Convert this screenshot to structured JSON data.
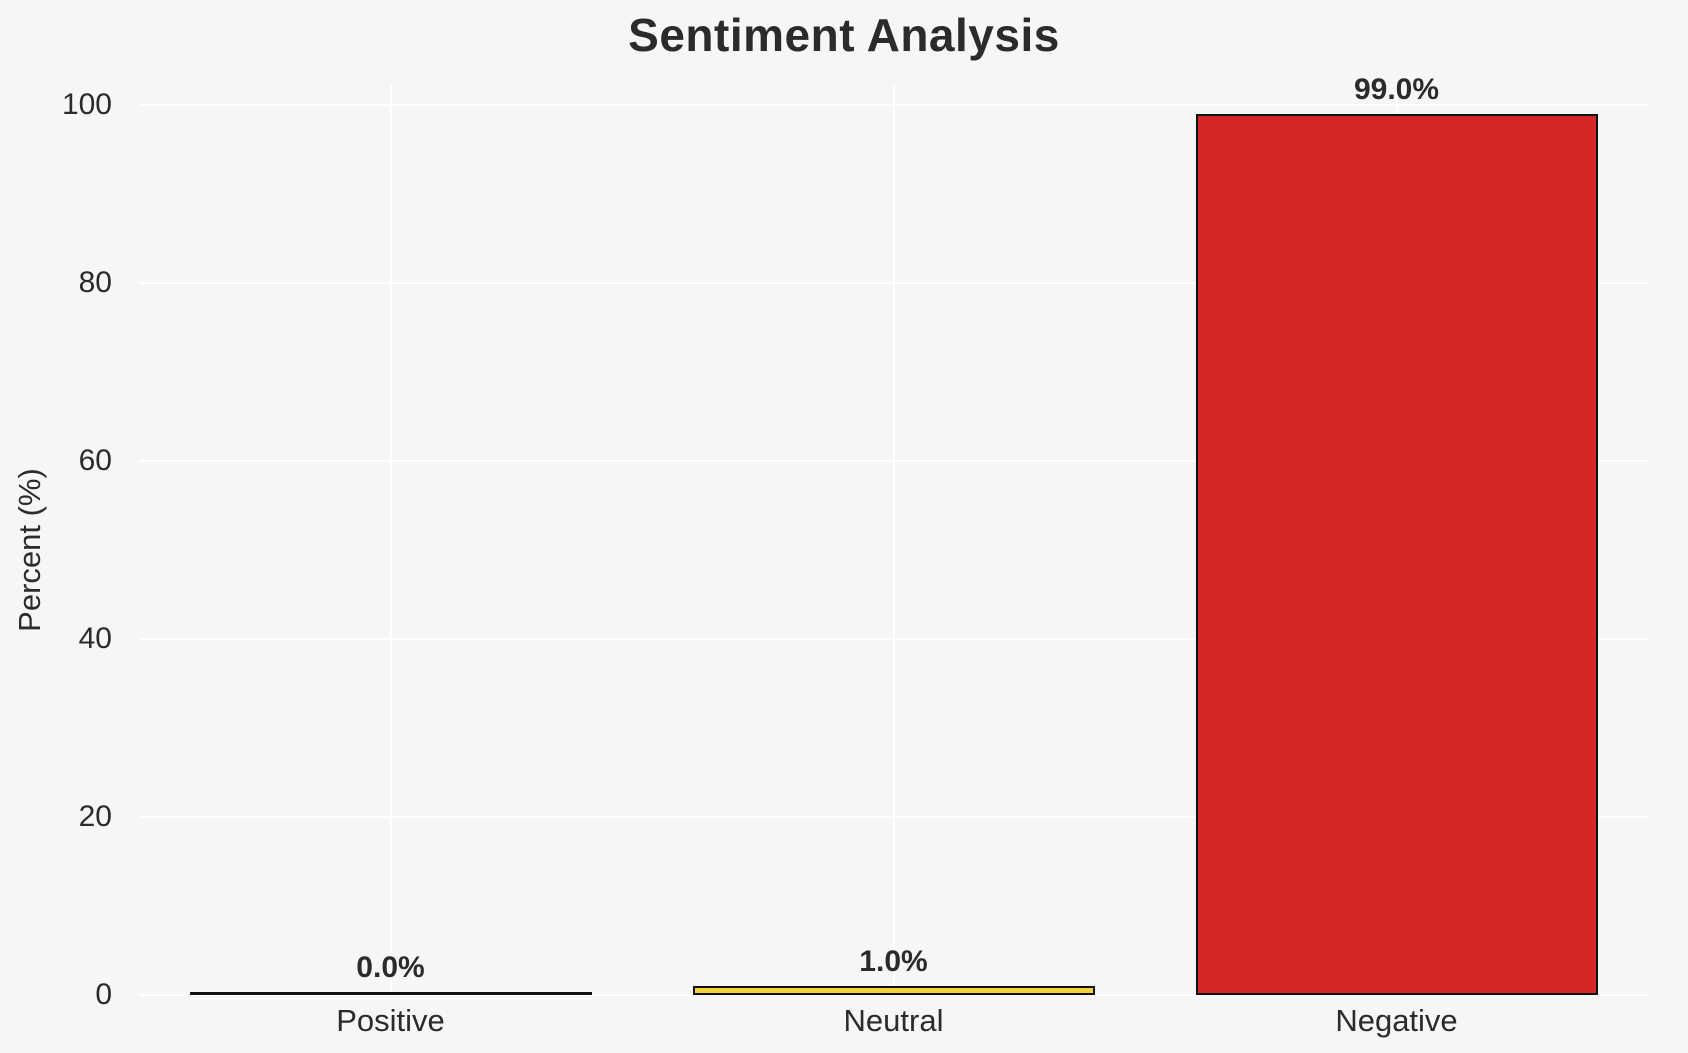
{
  "chart_data": {
    "type": "bar",
    "title": "Sentiment Analysis",
    "ylabel": "Percent (%)",
    "xlabel": "",
    "categories": [
      "Positive",
      "Neutral",
      "Negative"
    ],
    "values": [
      0.0,
      1.0,
      99.0
    ],
    "bar_value_labels": [
      "0.0%",
      "1.0%",
      "99.0%"
    ],
    "bar_colors": [
      "none",
      "#f3d13c",
      "#d62728"
    ],
    "bar_edge_color": "#111111",
    "yticks": [
      0,
      20,
      40,
      60,
      80,
      100
    ],
    "ytick_labels": [
      "0",
      "20",
      "40",
      "60",
      "80",
      "100"
    ],
    "ylim": [
      0,
      102.3
    ],
    "grid": true,
    "legend": "none",
    "colors": {
      "background": "#f6f6f6",
      "grid": "#ffffff",
      "text": "#2b2b2b"
    }
  }
}
